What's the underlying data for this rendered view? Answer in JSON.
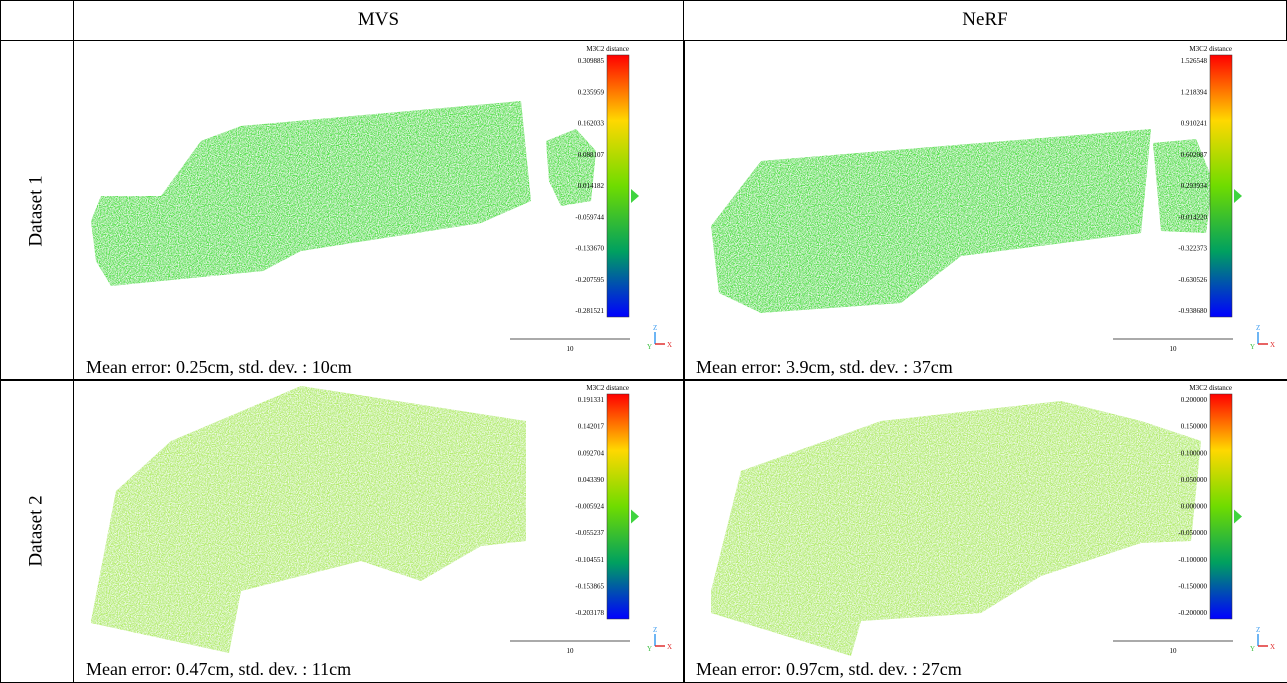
{
  "table": {
    "headers": [
      "MVS",
      "NeRF"
    ],
    "rows": [
      {
        "label": "Dataset 1",
        "cells": [
          {
            "colorbar_title": "M3C2 distance",
            "colorbar_ticks": [
              "0.309885",
              "0.235959",
              "0.162033",
              "0.088107",
              "0.014182",
              "-0.059744",
              "-0.133670",
              "-0.207595",
              "-0.281521"
            ],
            "scale_label": "10",
            "axes": [
              "Z",
              "Y",
              "X"
            ],
            "caption": "Mean error: 0.25cm, std. dev. : 10cm"
          },
          {
            "colorbar_title": "M3C2 distance",
            "colorbar_ticks": [
              "1.526548",
              "1.218394",
              "0.910241",
              "0.602087",
              "0.293934",
              "-0.014220",
              "-0.322373",
              "-0.630526",
              "-0.938680"
            ],
            "scale_label": "10",
            "axes": [
              "Z",
              "Y",
              "X"
            ],
            "caption": "Mean error: 3.9cm, std. dev. : 37cm"
          }
        ]
      },
      {
        "label": "Dataset 2",
        "cells": [
          {
            "colorbar_title": "M3C2 distance",
            "colorbar_ticks": [
              "0.191331",
              "0.142017",
              "0.092704",
              "0.043390",
              "-0.005924",
              "-0.055237",
              "-0.104551",
              "-0.153865",
              "-0.203178"
            ],
            "scale_label": "10",
            "axes": [
              "Z",
              "Y",
              "X"
            ],
            "caption": "Mean error: 0.47cm, std. dev. : 11cm"
          },
          {
            "colorbar_title": "M3C2 distance",
            "colorbar_ticks": [
              "0.200000",
              "0.150000",
              "0.100000",
              "0.050000",
              "0.000000",
              "-0.050000",
              "-0.100000",
              "-0.150000",
              "-0.200000"
            ],
            "scale_label": "10",
            "axes": [
              "Z",
              "Y",
              "X"
            ],
            "caption": "Mean error: 0.97cm, std. dev. : 27cm"
          }
        ]
      }
    ]
  }
}
